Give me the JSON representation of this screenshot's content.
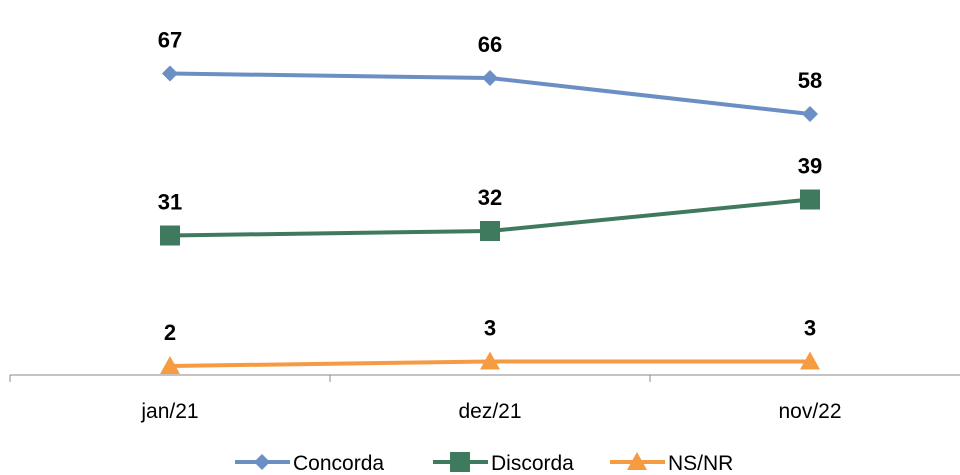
{
  "chart_data": {
    "type": "line",
    "categories": [
      "jan/21",
      "dez/21",
      "nov/22"
    ],
    "series": [
      {
        "name": "Concorda",
        "values": [
          67,
          66,
          58
        ],
        "color": "#6b8fc4",
        "marker": "diamond"
      },
      {
        "name": "Discorda",
        "values": [
          31,
          32,
          39
        ],
        "color": "#3f7a5e",
        "marker": "square"
      },
      {
        "name": "NS/NR",
        "values": [
          2,
          3,
          3
        ],
        "color": "#f59b42",
        "marker": "triangle"
      }
    ],
    "title": "",
    "xlabel": "",
    "ylabel": "",
    "ylim": [
      0,
      70
    ],
    "grid": false,
    "legend_position": "bottom"
  }
}
